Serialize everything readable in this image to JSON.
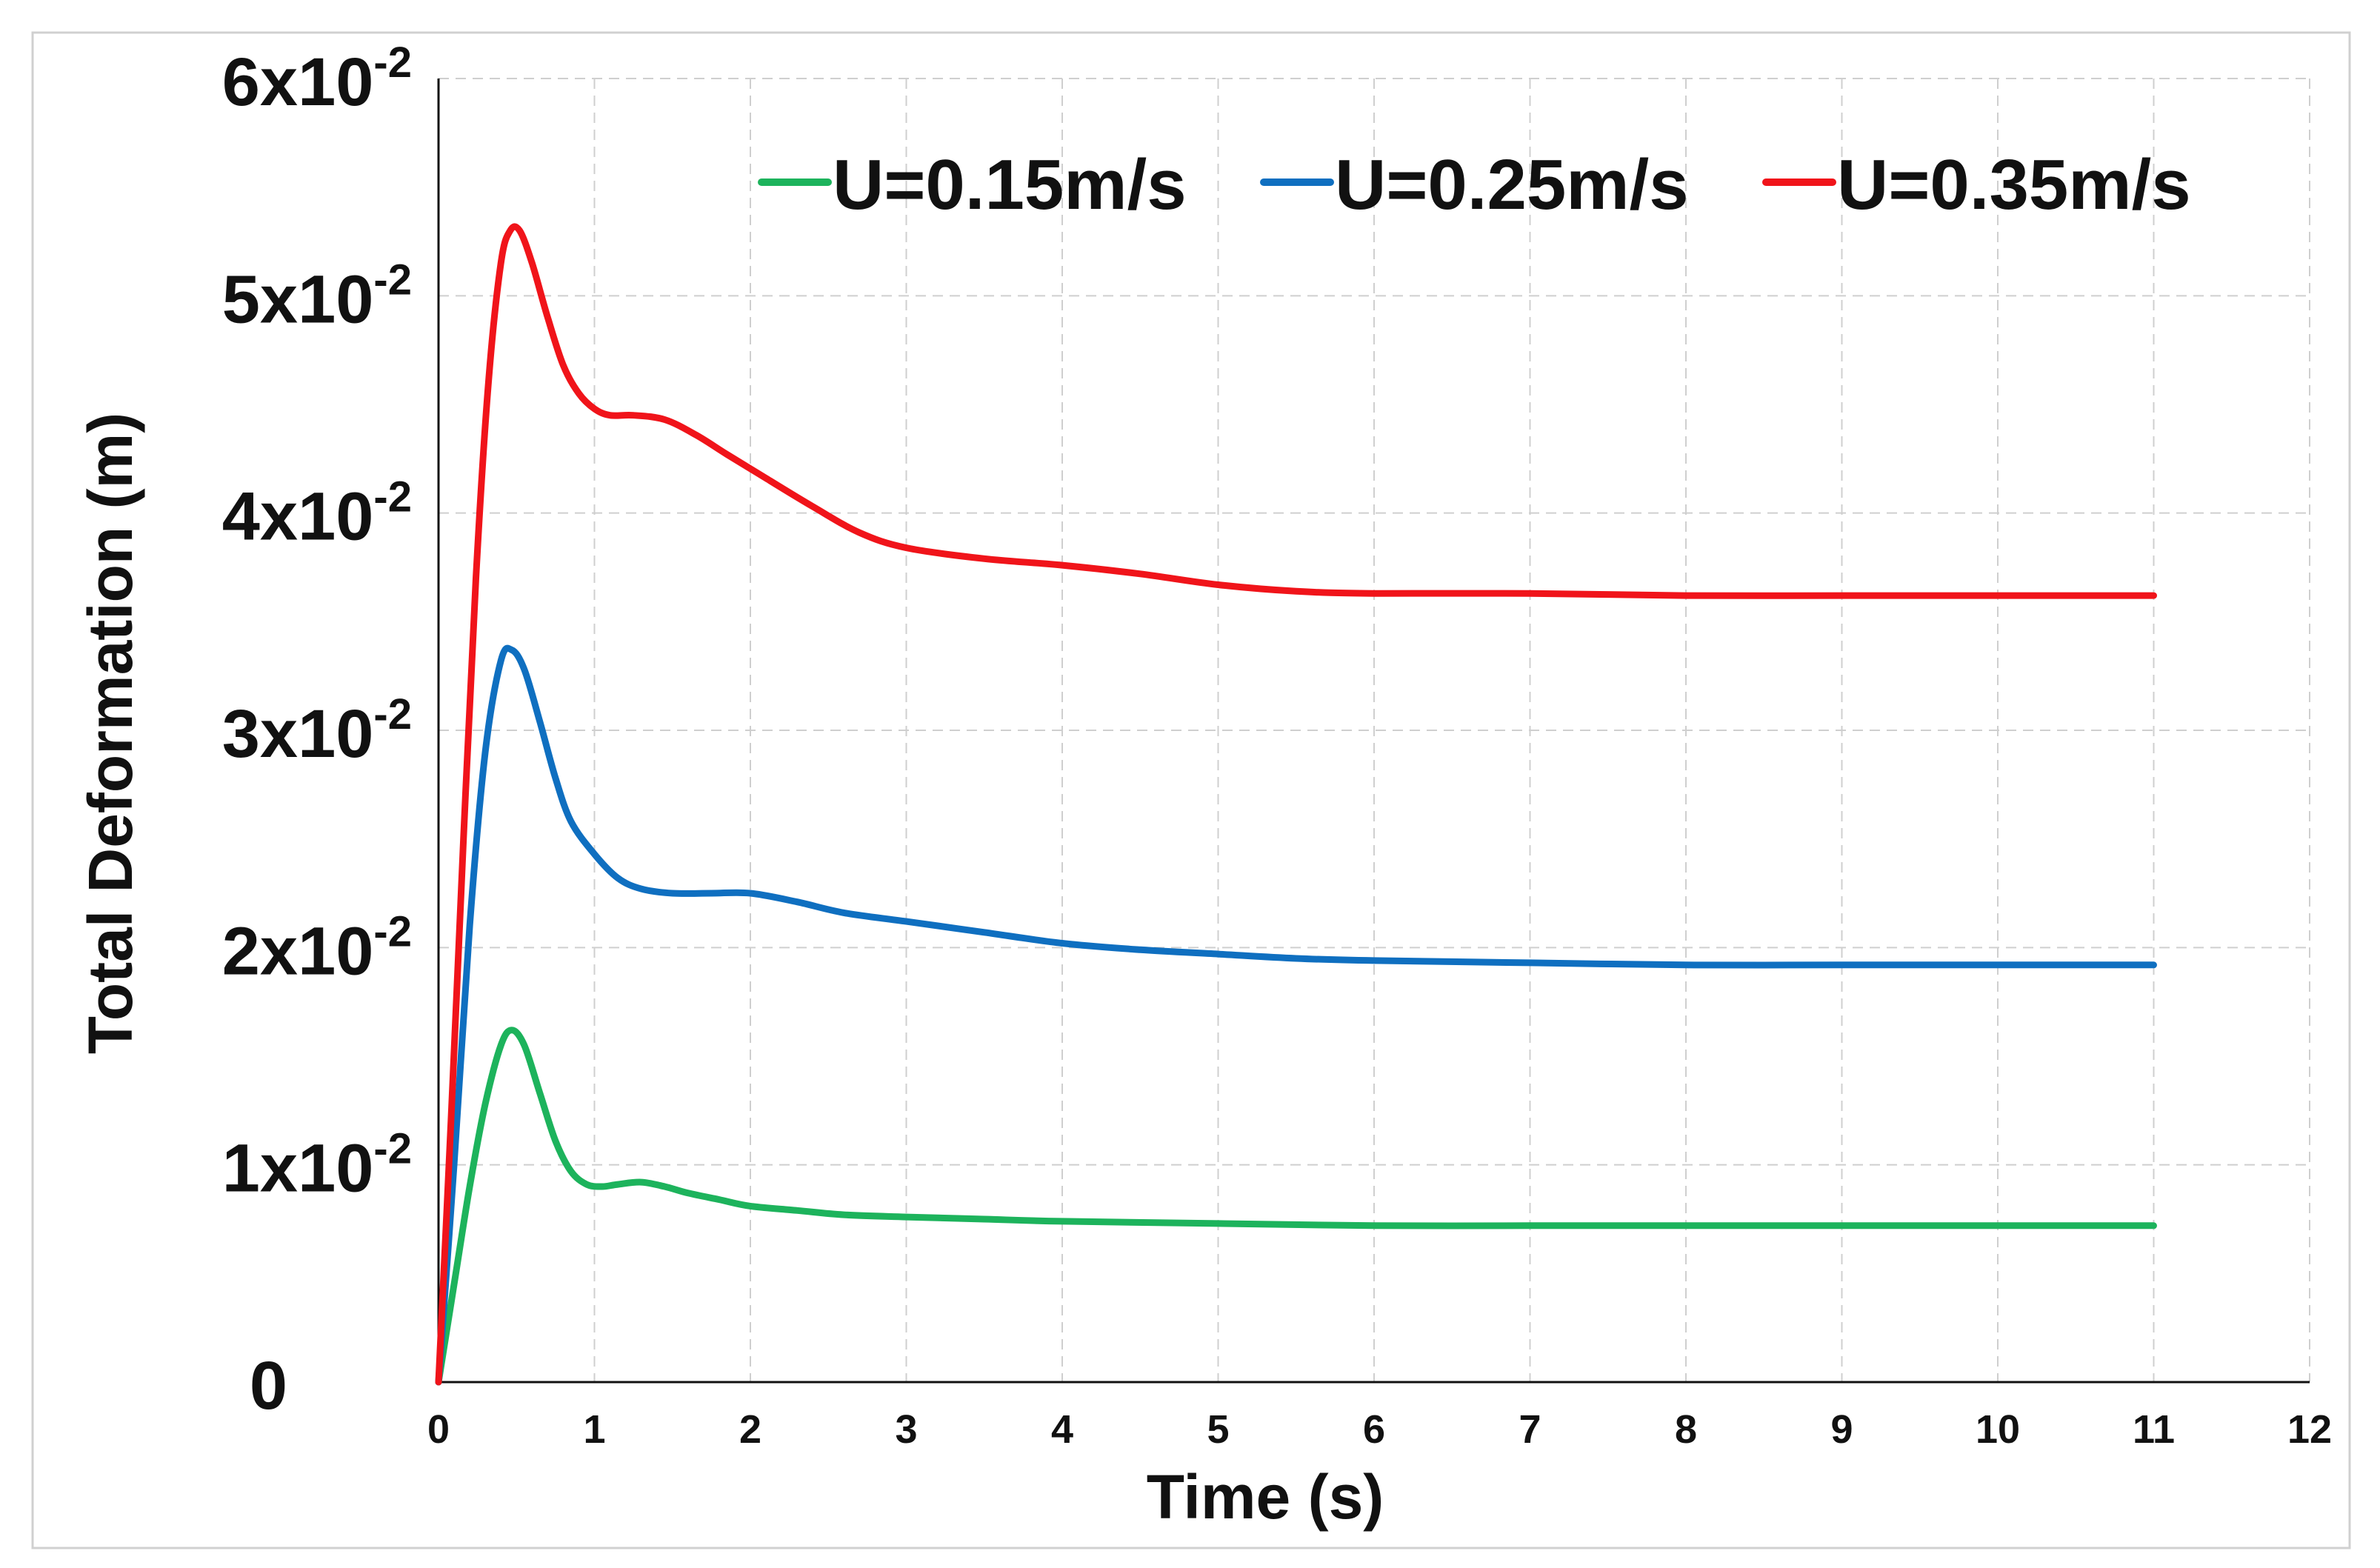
{
  "chart_data": {
    "type": "line",
    "title": "",
    "xlabel": "Time (s)",
    "ylabel": "Total Deformation (m)",
    "xlim": [
      0,
      12
    ],
    "ylim": [
      0,
      0.06
    ],
    "x_ticks": [
      {
        "value": 0,
        "label": "0"
      },
      {
        "value": 1,
        "label": "1"
      },
      {
        "value": 2,
        "label": "2"
      },
      {
        "value": 3,
        "label": "3"
      },
      {
        "value": 4,
        "label": "4"
      },
      {
        "value": 5,
        "label": "5"
      },
      {
        "value": 6,
        "label": "6"
      },
      {
        "value": 7,
        "label": "7"
      },
      {
        "value": 8,
        "label": "8"
      },
      {
        "value": 9,
        "label": "9"
      },
      {
        "value": 10,
        "label": "10"
      },
      {
        "value": 11,
        "label": "11"
      },
      {
        "value": 12,
        "label": "12"
      }
    ],
    "y_ticks": [
      {
        "value": 0,
        "mantissa": "0",
        "exponent": ""
      },
      {
        "value": 0.01,
        "mantissa": "1x10",
        "exponent": "-2"
      },
      {
        "value": 0.02,
        "mantissa": "2x10",
        "exponent": "-2"
      },
      {
        "value": 0.03,
        "mantissa": "3x10",
        "exponent": "-2"
      },
      {
        "value": 0.04,
        "mantissa": "4x10",
        "exponent": "-2"
      },
      {
        "value": 0.05,
        "mantissa": "5x10",
        "exponent": "-2"
      },
      {
        "value": 0.06,
        "mantissa": "6x10",
        "exponent": "-2"
      }
    ],
    "grid": true,
    "legend_position": "top-right",
    "series": [
      {
        "name": "U=0.15m/s",
        "color": "#1db35c",
        "x": [
          0,
          0.1,
          0.2,
          0.3,
          0.4,
          0.47,
          0.55,
          0.65,
          0.75,
          0.85,
          0.95,
          1.05,
          1.15,
          1.3,
          1.45,
          1.6,
          1.8,
          2.0,
          2.3,
          2.6,
          3.0,
          3.5,
          4.0,
          5.0,
          6.0,
          7.0,
          8.0,
          9.0,
          10.0,
          11.0
        ],
        "values": [
          0,
          0.0045,
          0.009,
          0.0128,
          0.0155,
          0.0162,
          0.0155,
          0.0133,
          0.0111,
          0.0097,
          0.0091,
          0.009,
          0.0091,
          0.0092,
          0.009,
          0.0087,
          0.0084,
          0.0081,
          0.0079,
          0.0077,
          0.0076,
          0.0075,
          0.0074,
          0.0073,
          0.0072,
          0.0072,
          0.0072,
          0.0072,
          0.0072,
          0.0072
        ]
      },
      {
        "name": "U=0.25m/s",
        "color": "#0f6fc0",
        "x": [
          0,
          0.1,
          0.2,
          0.3,
          0.4,
          0.47,
          0.55,
          0.65,
          0.75,
          0.85,
          1.0,
          1.15,
          1.3,
          1.5,
          1.75,
          2.0,
          2.3,
          2.6,
          3.0,
          3.5,
          4.0,
          4.5,
          5.0,
          5.5,
          6.0,
          7.0,
          8.0,
          9.0,
          10.0,
          11.0
        ],
        "values": [
          0,
          0.01,
          0.021,
          0.029,
          0.0332,
          0.0337,
          0.0328,
          0.0304,
          0.0278,
          0.0258,
          0.0243,
          0.0232,
          0.0227,
          0.0225,
          0.0225,
          0.0225,
          0.0221,
          0.0216,
          0.0212,
          0.0207,
          0.0202,
          0.0199,
          0.0197,
          0.0195,
          0.0194,
          0.0193,
          0.0192,
          0.0192,
          0.0192,
          0.0192
        ]
      },
      {
        "name": "U=0.35m/s",
        "color": "#f0141a",
        "x": [
          0,
          0.08,
          0.16,
          0.24,
          0.32,
          0.4,
          0.46,
          0.52,
          0.6,
          0.7,
          0.8,
          0.9,
          1.0,
          1.1,
          1.25,
          1.45,
          1.65,
          1.85,
          2.1,
          2.4,
          2.7,
          3.0,
          3.5,
          4.0,
          4.5,
          5.0,
          5.5,
          6.0,
          7.0,
          8.0,
          9.0,
          10.0,
          11.0
        ],
        "values": [
          0,
          0.012,
          0.025,
          0.037,
          0.046,
          0.0515,
          0.053,
          0.053,
          0.0515,
          0.049,
          0.0468,
          0.0455,
          0.0448,
          0.0445,
          0.0445,
          0.0443,
          0.0436,
          0.0427,
          0.0416,
          0.0403,
          0.0391,
          0.0384,
          0.0379,
          0.0376,
          0.0372,
          0.0367,
          0.0364,
          0.0363,
          0.0363,
          0.0362,
          0.0362,
          0.0362,
          0.0362
        ]
      }
    ]
  }
}
